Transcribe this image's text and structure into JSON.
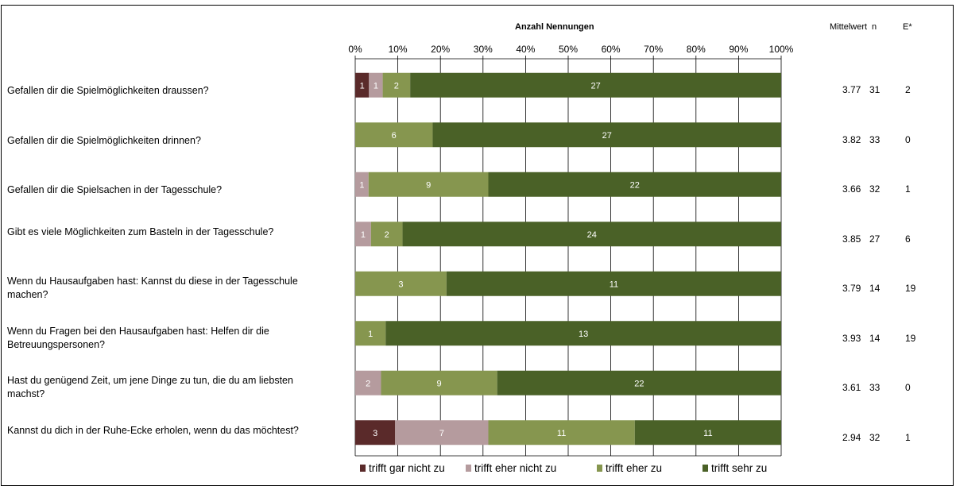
{
  "chart_data": {
    "type": "bar",
    "stacked": "percent",
    "orientation": "horizontal",
    "title": "Anzahl Nennungen",
    "xlim": [
      0,
      100
    ],
    "tick_labels": [
      "0%",
      "10%",
      "20%",
      "30%",
      "40%",
      "50%",
      "60%",
      "70%",
      "80%",
      "90%",
      "100%"
    ],
    "categories": [
      "Gefallen dir die Spielmöglichkeiten draussen?",
      "Gefallen dir die Spielmöglichkeiten drinnen?",
      "Gefallen dir die Spielsachen in der Tagesschule?",
      "Gibt es viele Möglichkeiten zum Basteln in der Tagesschule?",
      "Wenn du Hausaufgaben hast: Kannst du diese in der Tagesschule machen?",
      "Wenn du Fragen bei den Hausaufgaben hast: Helfen dir die Betreuungspersonen?",
      "Hast du genügend Zeit, um jene Dinge zu tun, die du am liebsten machst?",
      "Kannst du dich in der Ruhe-Ecke erholen, wenn du das möchtest?"
    ],
    "series": [
      {
        "name": "trifft gar nicht zu",
        "color": "#5a2a2a",
        "values": [
          1,
          0,
          0,
          0,
          0,
          0,
          0,
          3
        ]
      },
      {
        "name": "trifft eher nicht zu",
        "color": "#b59b9e",
        "values": [
          1,
          0,
          1,
          1,
          0,
          0,
          2,
          7
        ]
      },
      {
        "name": "trifft eher zu",
        "color": "#86964f",
        "values": [
          2,
          6,
          9,
          2,
          3,
          1,
          9,
          11
        ]
      },
      {
        "name": "trifft sehr zu",
        "color": "#4a6127",
        "values": [
          27,
          27,
          22,
          24,
          11,
          13,
          22,
          11
        ]
      }
    ],
    "grid": true,
    "legend_position": "bottom"
  },
  "headers": {
    "mittelwert": "Mittelwert",
    "n": "n",
    "e": "E*"
  },
  "stats": [
    {
      "mittelwert": "3.77",
      "n": "31",
      "e": "2"
    },
    {
      "mittelwert": "3.82",
      "n": "33",
      "e": "0"
    },
    {
      "mittelwert": "3.66",
      "n": "32",
      "e": "1"
    },
    {
      "mittelwert": "3.85",
      "n": "27",
      "e": "6"
    },
    {
      "mittelwert": "3.79",
      "n": "14",
      "e": "19"
    },
    {
      "mittelwert": "3.93",
      "n": "14",
      "e": "19"
    },
    {
      "mittelwert": "3.61",
      "n": "33",
      "e": "0"
    },
    {
      "mittelwert": "2.94",
      "n": "32",
      "e": "1"
    }
  ]
}
